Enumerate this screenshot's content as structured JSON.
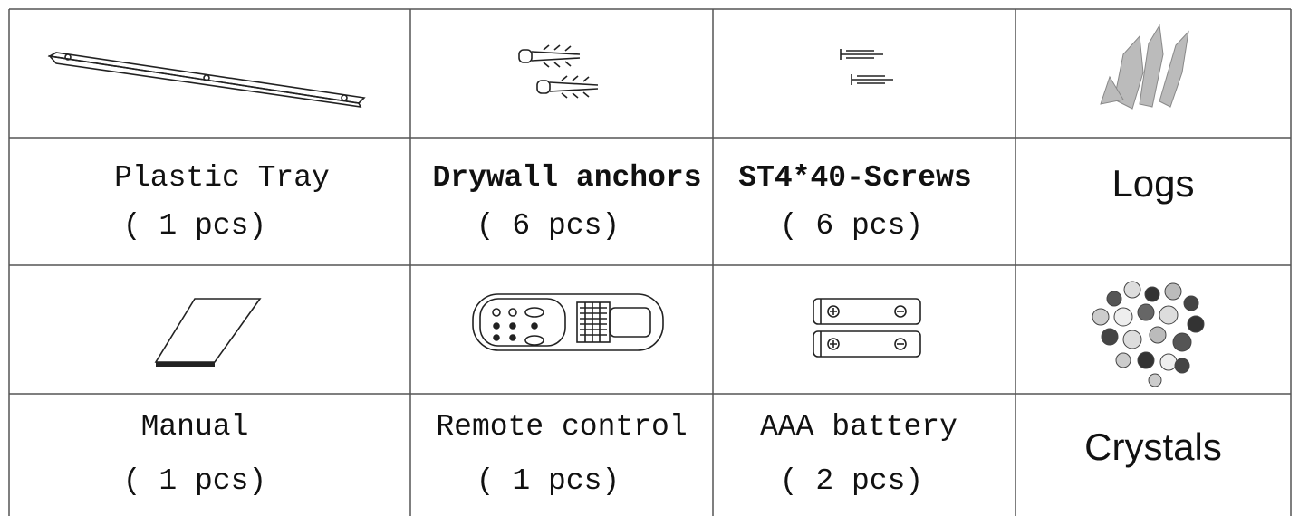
{
  "rows": [
    [
      {
        "name": "Plastic Tray",
        "quantity": "( 1 pcs)"
      },
      {
        "name": "Drywall anchors",
        "quantity": "( 6 pcs)"
      },
      {
        "name": "ST4*40-Screws",
        "quantity": "( 6 pcs)"
      },
      {
        "name": "Logs"
      }
    ],
    [
      {
        "name": "Manual",
        "quantity": "( 1 pcs)"
      },
      {
        "name": "Remote control",
        "quantity": "( 1 pcs)"
      },
      {
        "name": "AAA battery",
        "quantity": "( 2 pcs)"
      },
      {
        "name": "Crystals"
      }
    ]
  ]
}
